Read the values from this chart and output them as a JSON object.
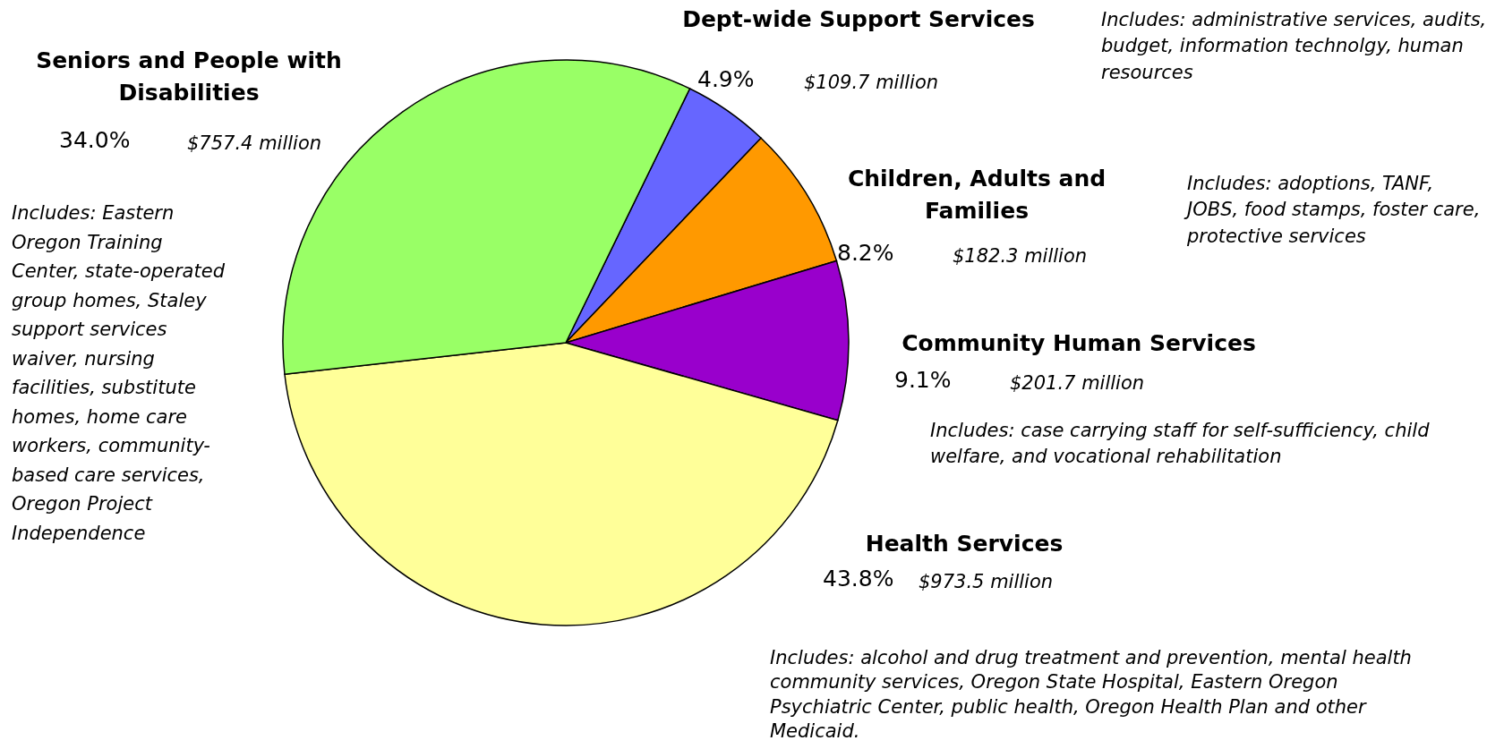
{
  "chart_data": {
    "type": "pie",
    "categories": [
      "Dept-wide Support Services",
      "Children, Adults and Families",
      "Community Human Services",
      "Health Services",
      "Seniors and People with Disabilities"
    ],
    "values": [
      4.9,
      8.2,
      9.1,
      43.8,
      34.0
    ],
    "value_labels": [
      "4.9%",
      "8.2%",
      "9.1%",
      "43.8%",
      "34.0%"
    ],
    "colors": [
      "#6666ff",
      "#ff9900",
      "#9900cc",
      "#ffff99",
      "#99ff66"
    ],
    "annotations": [
      {
        "text": "$109.7 million",
        "x": "Dept-wide Support Services"
      },
      {
        "text": "Includes: administrative services, audits, budget, information technolgy, human resources",
        "x": "Dept-wide Support Services"
      },
      {
        "text": "$182.3 million",
        "x": "Children, Adults and Families"
      },
      {
        "text": "Includes: adoptions, TANF, JOBS, food stamps, foster care, protective services",
        "x": "Children, Adults and Families"
      },
      {
        "text": "$201.7 million",
        "x": "Community Human Services"
      },
      {
        "text": "Includes: case carrying staff for self-sufficiency, child welfare, and vocational rehabilitation",
        "x": "Community Human Services"
      },
      {
        "text": "$973.5 million",
        "x": "Health Services"
      },
      {
        "text": "Includes: alcohol and drug treatment and prevention, mental health community services, Oregon State Hospital, Eastern Oregon Psychiatric Center, public health, Oregon Health Plan and other Medicaid.",
        "x": "Health Services"
      },
      {
        "text": "$757.4 million",
        "x": "Seniors and People with Disabilities"
      },
      {
        "text": "Includes: Eastern Oregon Training Center, state-operated group homes, Staley support services waiver, nursing facilities, substitute homes, home care workers, community-based care services, Oregon Project Independence",
        "x": "Seniors and People with Disabilities"
      }
    ]
  }
}
